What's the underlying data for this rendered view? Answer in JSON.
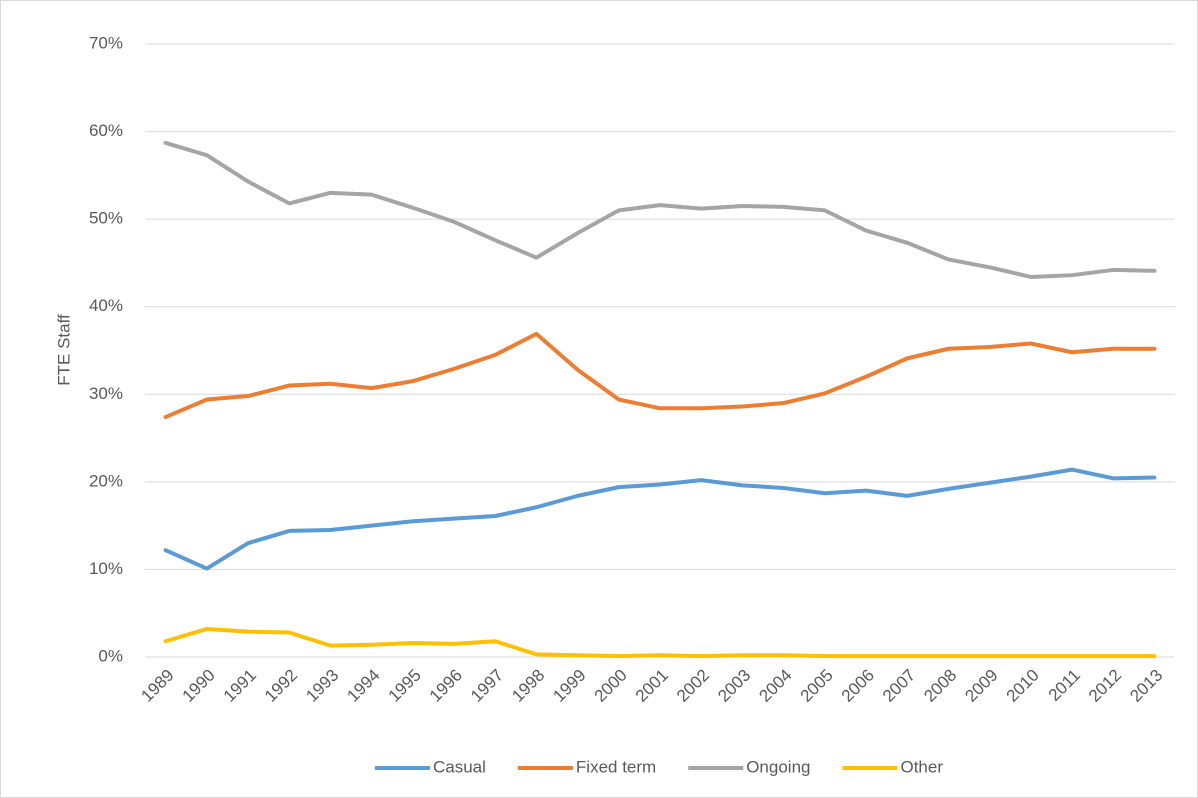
{
  "chart_data": {
    "type": "line",
    "y_label": "FTE Staff",
    "categories": [
      "1989",
      "1990",
      "1991",
      "1992",
      "1993",
      "1994",
      "1995",
      "1996",
      "1997",
      "1998",
      "1999",
      "2000",
      "2001",
      "2002",
      "2003",
      "2004",
      "2005",
      "2006",
      "2007",
      "2008",
      "2009",
      "2010",
      "2011",
      "2012",
      "2013"
    ],
    "series": [
      {
        "name": "Casual",
        "color": "#5b9bd5",
        "values": [
          12.2,
          10.1,
          13.0,
          14.4,
          14.5,
          15.0,
          15.5,
          15.8,
          16.1,
          17.1,
          18.4,
          19.4,
          19.7,
          20.2,
          19.6,
          19.3,
          18.7,
          19.0,
          18.4,
          19.2,
          19.9,
          20.6,
          21.4,
          20.4,
          20.5
        ]
      },
      {
        "name": "Fixed term",
        "color": "#ed7d31",
        "values": [
          27.4,
          29.4,
          29.8,
          31.0,
          31.2,
          30.7,
          31.5,
          32.9,
          34.5,
          36.9,
          32.8,
          29.4,
          28.4,
          28.4,
          28.6,
          29.0,
          30.1,
          32.0,
          34.1,
          35.2,
          35.4,
          35.8,
          34.8,
          35.2,
          35.2
        ]
      },
      {
        "name": "Ongoing",
        "color": "#a5a5a5",
        "values": [
          58.7,
          57.3,
          54.3,
          51.8,
          53.0,
          52.8,
          51.3,
          49.7,
          47.6,
          45.6,
          48.4,
          51.0,
          51.6,
          51.2,
          51.5,
          51.4,
          51.0,
          48.7,
          47.3,
          45.4,
          44.5,
          43.4,
          43.6,
          44.2,
          44.1
        ]
      },
      {
        "name": "Other",
        "color": "#ffc000",
        "values": [
          1.8,
          3.2,
          2.9,
          2.8,
          1.3,
          1.4,
          1.6,
          1.5,
          1.8,
          0.3,
          0.2,
          0.1,
          0.2,
          0.1,
          0.2,
          0.2,
          0.1,
          0.1,
          0.1,
          0.1,
          0.1,
          0.1,
          0.1,
          0.1,
          0.1
        ]
      }
    ],
    "ylim": [
      0,
      70
    ],
    "yticks": [
      {
        "value": 0,
        "label": "0%"
      },
      {
        "value": 10,
        "label": "10%"
      },
      {
        "value": 20,
        "label": "20%"
      },
      {
        "value": 30,
        "label": "30%"
      },
      {
        "value": 40,
        "label": "40%"
      },
      {
        "value": 50,
        "label": "50%"
      },
      {
        "value": 60,
        "label": "60%"
      },
      {
        "value": 70,
        "label": "70%"
      }
    ],
    "grid": true,
    "legend": "bottom"
  }
}
